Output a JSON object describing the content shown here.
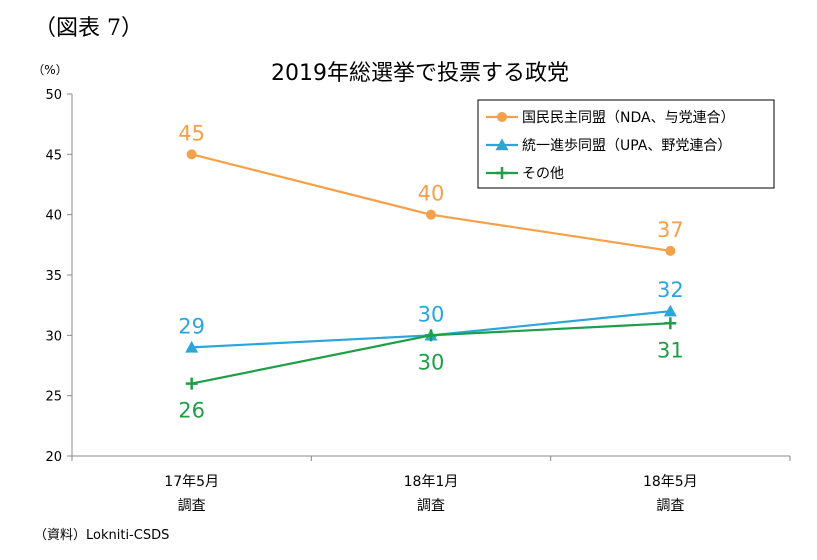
{
  "figure_label": "（図表 7）",
  "source": "（資料）Lokniti-CSDS",
  "chart_data": {
    "type": "line",
    "title": "2019年総選挙で投票する政党",
    "unit_label": "（%）",
    "ylim": [
      20,
      50
    ],
    "yticks": [
      20,
      25,
      30,
      35,
      40,
      45,
      50
    ],
    "categories": [
      [
        "17年5月",
        "調査"
      ],
      [
        "18年1月",
        "調査"
      ],
      [
        "18年5月",
        "調査"
      ]
    ],
    "grid": false,
    "legend_position": "top-right",
    "series": [
      {
        "name": "国民民主同盟（NDA、与党連合）",
        "values": [
          45,
          40,
          37
        ],
        "color": "#f4a14a",
        "marker": "circle",
        "label_pos": "above"
      },
      {
        "name": "統一進歩同盟（UPA、野党連合）",
        "values": [
          29,
          30,
          32
        ],
        "color": "#2aa6db",
        "marker": "triangle",
        "label_pos": "above"
      },
      {
        "name": "その他",
        "values": [
          26,
          30,
          31
        ],
        "color": "#1e9e46",
        "marker": "plus",
        "label_pos": "below"
      }
    ]
  }
}
